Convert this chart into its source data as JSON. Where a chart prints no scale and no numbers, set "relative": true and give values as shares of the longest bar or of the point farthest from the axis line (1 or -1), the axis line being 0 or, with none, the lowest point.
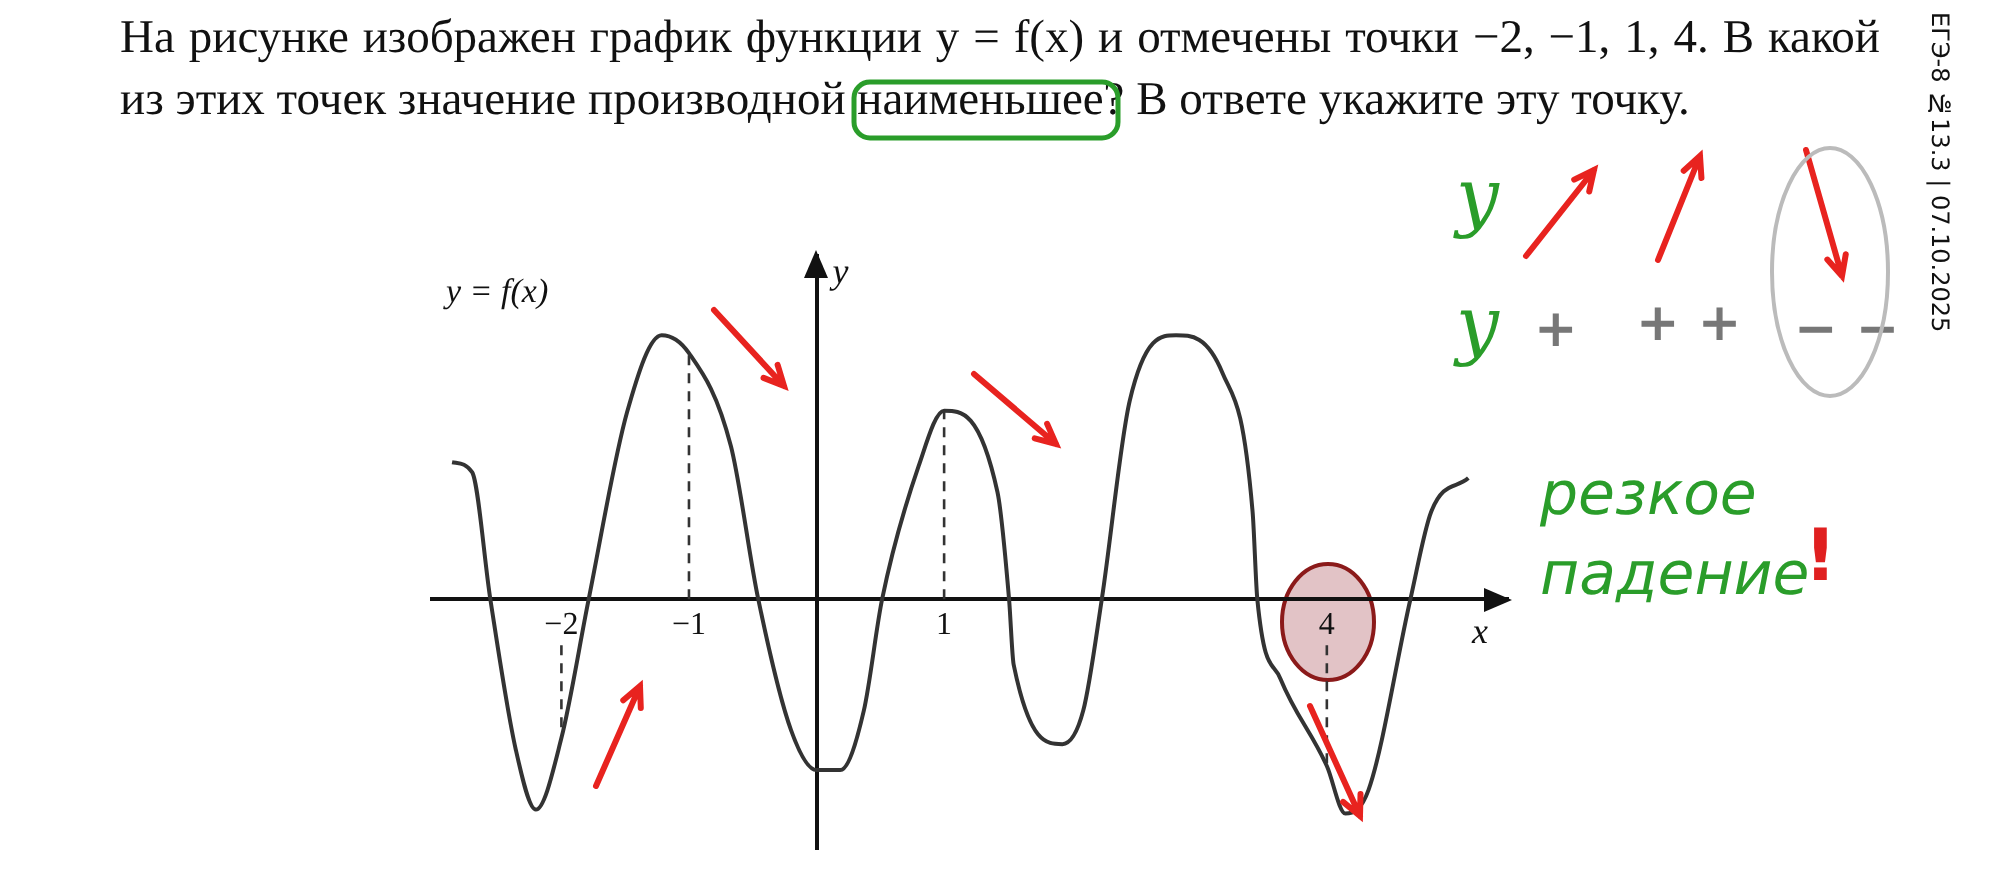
{
  "chart_data": {
    "type": "line",
    "title": "На рисунке изображен график функции y = f(x) и отмечены точки −2, −1, 1, 4. В какой из этих точек значение производной наименьшее? В ответе укажите эту точку.",
    "xlabel": "x",
    "ylabel": "y",
    "relative": true,
    "legend": false,
    "grid": false,
    "marker": "none",
    "line_style": "solid",
    "xlim": [
      -3.03,
      5.42
    ],
    "xticks": [
      {
        "value": -2,
        "label": "−2"
      },
      {
        "value": -1,
        "label": "−1"
      },
      {
        "value": 1,
        "label": "1"
      },
      {
        "value": 4,
        "label": "4"
      }
    ],
    "series": [
      {
        "name": "y = f(x)",
        "color": "#333333",
        "x": [
          -2.857,
          -2.7,
          -2.557,
          -2.357,
          -2.2,
          -2.0,
          -1.786,
          -1.486,
          -1.214,
          -1.0,
          -0.671,
          -0.457,
          -0.2,
          0,
          0.186,
          0.371,
          0.514,
          0.8,
          1.0,
          1.418,
          1.509,
          1.545,
          1.927,
          2.091,
          2.236,
          2.455,
          2.818,
          3.182,
          3.418,
          3.455,
          3.636,
          4.0,
          4.145,
          4.327,
          4.655,
          4.818,
          5.109
        ],
        "values": [
          0.519,
          0.481,
          0,
          -0.571,
          -0.797,
          -0.526,
          0,
          0.707,
          1,
          0.932,
          0.579,
          0,
          -0.496,
          -0.647,
          -0.647,
          -0.421,
          0,
          0.504,
          0.714,
          0.406,
          0,
          -0.248,
          -0.549,
          -0.421,
          0,
          0.752,
          1,
          0.857,
          0.331,
          0,
          -0.301,
          -0.632,
          -0.812,
          -0.722,
          0,
          0.331,
          0.459
        ]
      }
    ],
    "ref_lines": [
      {
        "axis": "x",
        "value": -2,
        "line_style": "dashed",
        "color": "#333333"
      },
      {
        "axis": "x",
        "value": -1,
        "line_style": "dashed",
        "color": "#333333"
      },
      {
        "axis": "x",
        "value": 1,
        "line_style": "dashed",
        "color": "#333333"
      },
      {
        "axis": "x",
        "value": 4,
        "line_style": "dashed",
        "color": "#333333"
      }
    ],
    "annotations": [
      "ЕГЭ-8 №13.3 | 07.10.2025",
      "y",
      "y",
      "+",
      "+ +",
      "− −",
      "резкое падение",
      "!"
    ]
  }
}
